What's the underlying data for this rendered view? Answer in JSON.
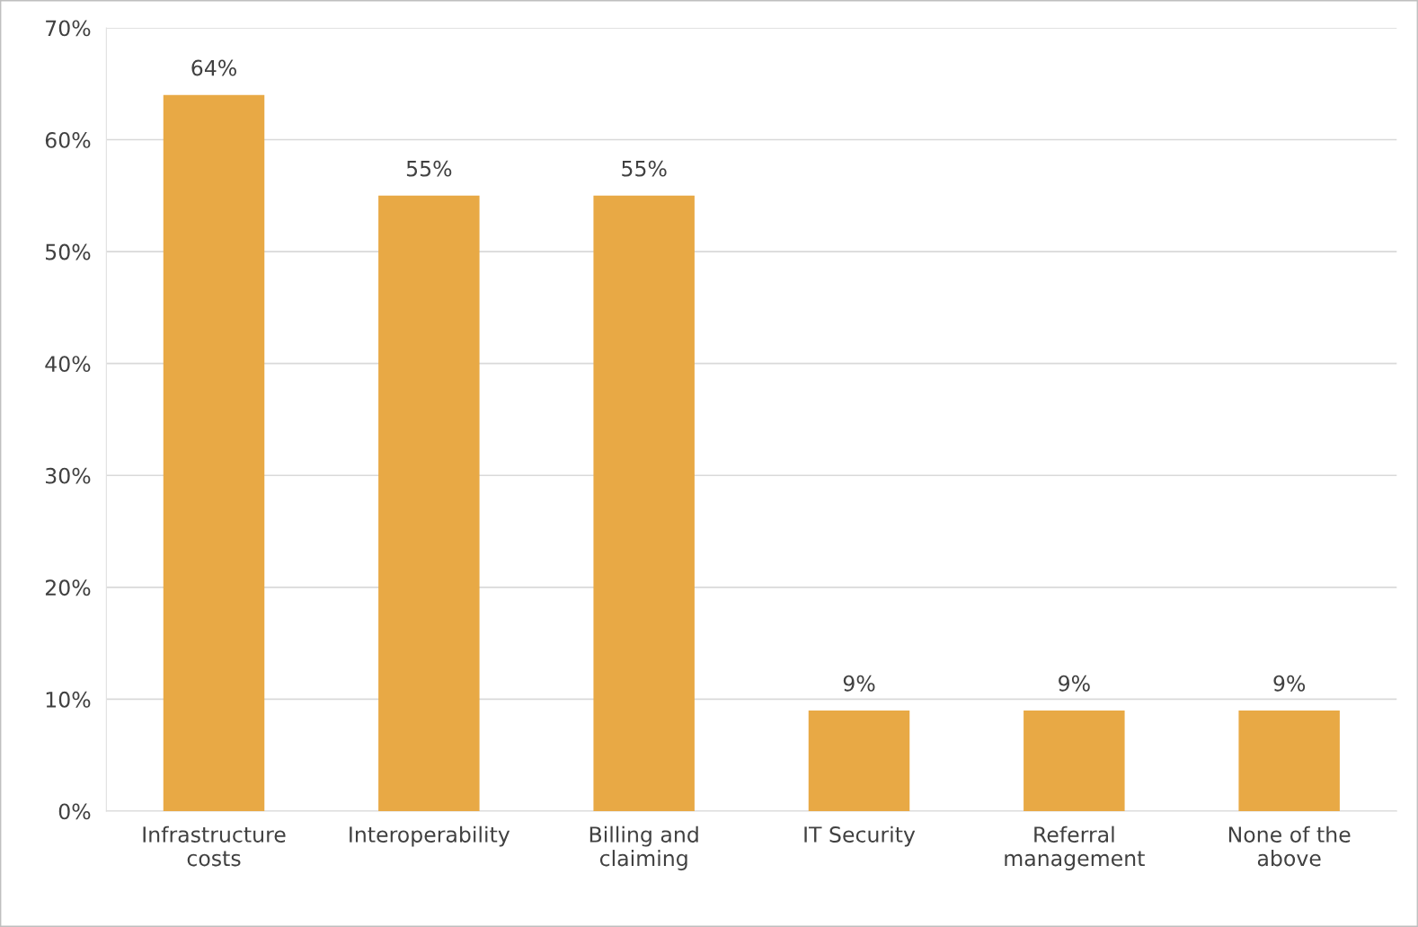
{
  "chart_data": {
    "type": "bar",
    "categories": [
      "Infrastructure costs",
      "Interoperability",
      "Billing and claiming",
      "IT Security",
      "Referral management",
      "None of the above"
    ],
    "values": [
      64,
      55,
      55,
      9,
      9,
      9
    ],
    "value_labels": [
      "64%",
      "55%",
      "55%",
      "9%",
      "9%",
      "9%"
    ],
    "color": "#e8a945",
    "ylim": [
      0,
      70
    ],
    "yticks": [
      {
        "value": 0,
        "label": "0%"
      },
      {
        "value": 10,
        "label": "10%"
      },
      {
        "value": 20,
        "label": "20%"
      },
      {
        "value": 30,
        "label": "30%"
      },
      {
        "value": 40,
        "label": "40%"
      },
      {
        "value": 50,
        "label": "50%"
      },
      {
        "value": 60,
        "label": "60%"
      },
      {
        "value": 70,
        "label": "70%"
      }
    ],
    "grid": "y",
    "legend": false
  }
}
